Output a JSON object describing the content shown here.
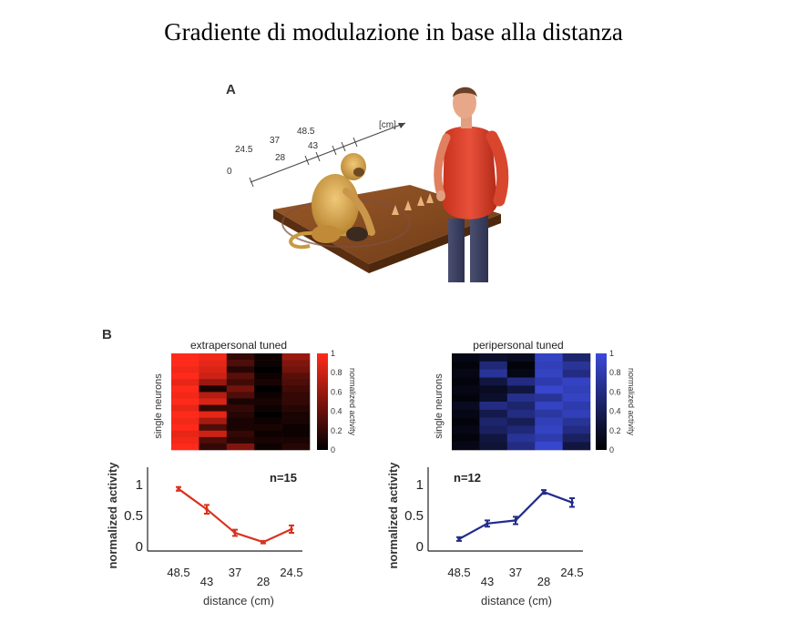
{
  "title": "Gradiente di modulazione in base alla distanza",
  "panelA": {
    "letter": "A",
    "unit_label": "[cm]",
    "ruler_ticks": [
      "0",
      "24.5",
      "28",
      "37",
      "43",
      "48.5"
    ]
  },
  "panelB": {
    "letter": "B",
    "colorbar_ticks": [
      "0",
      "0.2",
      "0.4",
      "0.6",
      "0.8",
      "1"
    ],
    "colorbar_label": "normalized activity",
    "heatmap_ylabel": "single neurons"
  },
  "chart_data": [
    {
      "type": "heatmap",
      "title": "extrapersonal tuned",
      "ylabel": "single neurons",
      "colorbar_label": "normalized activity",
      "colorscale": [
        "#000000",
        "#ff2a1a"
      ],
      "range": [
        0,
        1
      ],
      "x": [
        "48.5",
        "43",
        "37",
        "28",
        "24.5"
      ],
      "values": [
        [
          1.0,
          0.95,
          0.2,
          0.05,
          0.6
        ],
        [
          1.0,
          0.9,
          0.3,
          0.05,
          0.5
        ],
        [
          0.95,
          0.85,
          0.15,
          0.0,
          0.45
        ],
        [
          1.0,
          0.8,
          0.35,
          0.05,
          0.35
        ],
        [
          0.9,
          0.6,
          0.25,
          0.1,
          0.3
        ],
        [
          1.0,
          0.1,
          0.45,
          0.0,
          0.25
        ],
        [
          0.95,
          0.7,
          0.3,
          0.05,
          0.2
        ],
        [
          1.0,
          0.85,
          0.1,
          0.1,
          0.2
        ],
        [
          0.9,
          0.2,
          0.2,
          0.05,
          0.15
        ],
        [
          1.0,
          0.9,
          0.15,
          0.0,
          0.1
        ],
        [
          0.95,
          0.65,
          0.1,
          0.05,
          0.1
        ],
        [
          1.0,
          0.3,
          0.1,
          0.1,
          0.05
        ],
        [
          0.9,
          0.8,
          0.2,
          0.05,
          0.05
        ],
        [
          0.95,
          0.3,
          0.15,
          0.1,
          0.1
        ],
        [
          1.0,
          0.2,
          0.5,
          0.05,
          0.15
        ]
      ]
    },
    {
      "type": "heatmap",
      "title": "peripersonal tuned",
      "ylabel": "single neurons",
      "colorbar_label": "normalized activity",
      "colorscale": [
        "#000000",
        "#3a4ad8"
      ],
      "range": [
        0,
        1
      ],
      "x": [
        "48.5",
        "43",
        "37",
        "28",
        "24.5"
      ],
      "values": [
        [
          0.1,
          0.2,
          0.15,
          0.9,
          0.5
        ],
        [
          0.05,
          0.55,
          0.05,
          0.85,
          0.7
        ],
        [
          0.1,
          0.7,
          0.1,
          0.9,
          0.6
        ],
        [
          0.05,
          0.3,
          0.6,
          0.8,
          0.9
        ],
        [
          0.1,
          0.15,
          0.3,
          0.95,
          0.85
        ],
        [
          0.05,
          0.2,
          0.65,
          0.7,
          0.9
        ],
        [
          0.15,
          0.6,
          0.5,
          0.9,
          0.8
        ],
        [
          0.1,
          0.35,
          0.6,
          0.75,
          0.85
        ],
        [
          0.05,
          0.5,
          0.4,
          0.85,
          0.7
        ],
        [
          0.1,
          0.45,
          0.55,
          0.9,
          0.6
        ],
        [
          0.05,
          0.3,
          0.7,
          0.8,
          0.45
        ],
        [
          0.1,
          0.25,
          0.6,
          0.95,
          0.3
        ]
      ]
    },
    {
      "type": "line",
      "xlabel": "distance (cm)",
      "ylabel": "normalized activity",
      "annotation": "n=15",
      "color": "#d8321e",
      "categories": [
        "48.5",
        "43",
        "37",
        "28",
        "24.5"
      ],
      "values": [
        0.93,
        0.6,
        0.22,
        0.07,
        0.28
      ],
      "errors": [
        0.03,
        0.07,
        0.05,
        0.02,
        0.06
      ],
      "yticks": [
        "0",
        "0.5",
        "1"
      ],
      "ylim": [
        0,
        1
      ]
    },
    {
      "type": "line",
      "xlabel": "distance (cm)",
      "ylabel": "normalized activity",
      "annotation": "n=12",
      "color": "#232c8c",
      "categories": [
        "48.5",
        "43",
        "37",
        "28",
        "24.5"
      ],
      "values": [
        0.12,
        0.37,
        0.42,
        0.88,
        0.71
      ],
      "errors": [
        0.03,
        0.05,
        0.06,
        0.03,
        0.07
      ],
      "yticks": [
        "0",
        "0.5",
        "1"
      ],
      "ylim": [
        0,
        1
      ]
    }
  ]
}
